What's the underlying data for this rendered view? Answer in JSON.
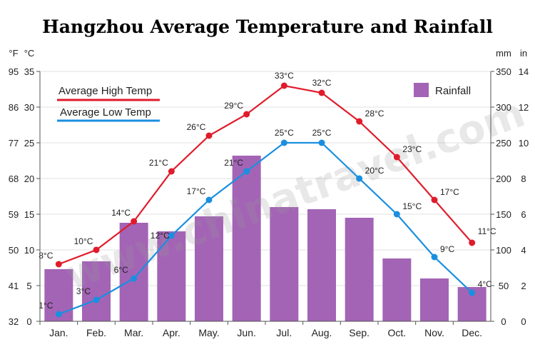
{
  "chart_data": {
    "type": "bar+line",
    "title": "Hangzhou Average Temperature and Rainfall",
    "watermark": "www.chinatravel.com",
    "categories": [
      "Jan.",
      "Feb.",
      "Mar.",
      "Apr.",
      "May.",
      "Jun.",
      "Jul.",
      "Aug.",
      "Sep.",
      "Oct.",
      "Nov.",
      "Dec."
    ],
    "axes": {
      "left_f": {
        "unit": "°F",
        "ticks": [
          "32",
          "41",
          "50",
          "59",
          "68",
          "77",
          "86",
          "95"
        ]
      },
      "left_c": {
        "unit": "°C",
        "ticks": [
          "0",
          "5",
          "10",
          "15",
          "20",
          "25",
          "30",
          "35"
        ],
        "ylim": [
          0,
          35
        ]
      },
      "right_mm": {
        "unit": "mm",
        "ticks": [
          "0",
          "50",
          "100",
          "150",
          "200",
          "250",
          "300",
          "350"
        ],
        "ylim": [
          0,
          350
        ]
      },
      "right_in": {
        "unit": "in",
        "ticks": [
          "0",
          "2",
          "4",
          "6",
          "8",
          "10",
          "12",
          "14"
        ]
      }
    },
    "series": [
      {
        "name": "Average High Temp",
        "type": "line",
        "color": "#e01b2b",
        "unit": "°C",
        "values": [
          8,
          10,
          14,
          21,
          26,
          29,
          33,
          32,
          28,
          23,
          17,
          11
        ],
        "labels": [
          "8°C",
          "10°C",
          "14°C",
          "21°C",
          "26°C",
          "29°C",
          "33°C",
          "32°C",
          "28°C",
          "23°C",
          "17°C",
          "11°C"
        ]
      },
      {
        "name": "Average Low Temp",
        "type": "line",
        "color": "#1a8fe0",
        "unit": "°C",
        "values": [
          1,
          3,
          6,
          12,
          17,
          21,
          25,
          25,
          20,
          15,
          9,
          4
        ],
        "labels": [
          "1°C",
          "3°C",
          "6°C",
          "12°C",
          "17°C",
          "21°C",
          "25°C",
          "25°C",
          "20°C",
          "15°C",
          "9°C",
          "4°C"
        ]
      },
      {
        "name": "Rainfall",
        "type": "bar",
        "color": "#a364b5",
        "unit": "mm",
        "values": [
          73,
          84,
          138,
          126,
          147,
          232,
          160,
          157,
          145,
          88,
          60,
          48
        ]
      }
    ],
    "legend": {
      "high": "Average High Temp",
      "low": "Average Low Temp",
      "rain": "Rainfall"
    }
  }
}
